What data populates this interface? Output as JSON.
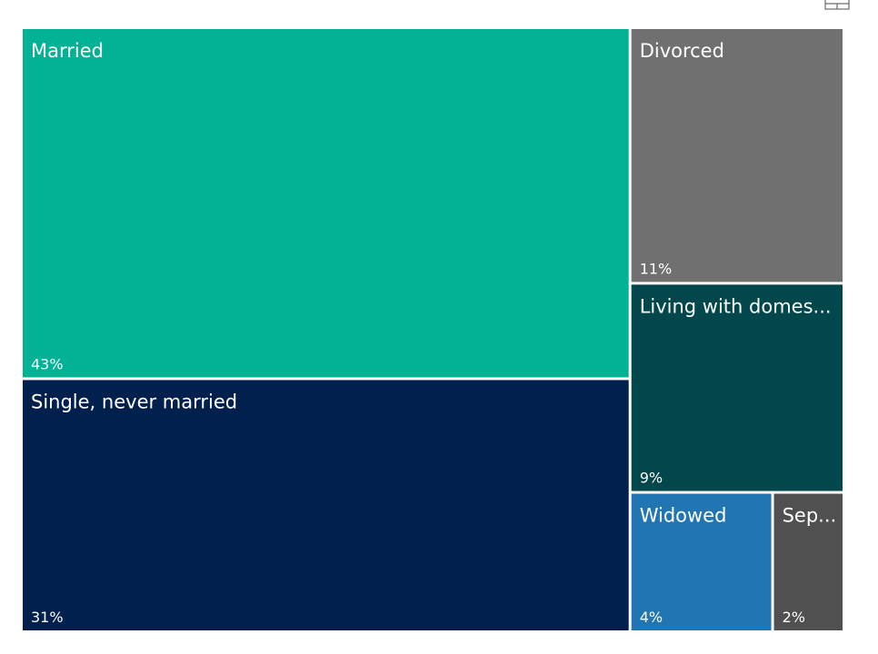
{
  "chart_data": {
    "type": "treemap",
    "title": "",
    "series": [
      {
        "name": "Married",
        "label": "Married",
        "value": 43,
        "pct_label": "43%",
        "color": "#01B294"
      },
      {
        "name": "Single, never married",
        "label": "Single, never married",
        "value": 31,
        "pct_label": "31%",
        "color": "#02204E"
      },
      {
        "name": "Divorced",
        "label": "Divorced",
        "value": 11,
        "pct_label": "11%",
        "color": "#707070"
      },
      {
        "name": "Living with domestic partner",
        "label": "Living with domes...",
        "value": 9,
        "pct_label": "9%",
        "color": "#02474C"
      },
      {
        "name": "Widowed",
        "label": "Widowed",
        "value": 4,
        "pct_label": "4%",
        "color": "#2275B3"
      },
      {
        "name": "Separated",
        "label": "Sep...",
        "value": 2,
        "pct_label": "2%",
        "color": "#505050"
      }
    ]
  },
  "toolbar": {
    "focus_icon": "focus-mode-icon"
  }
}
